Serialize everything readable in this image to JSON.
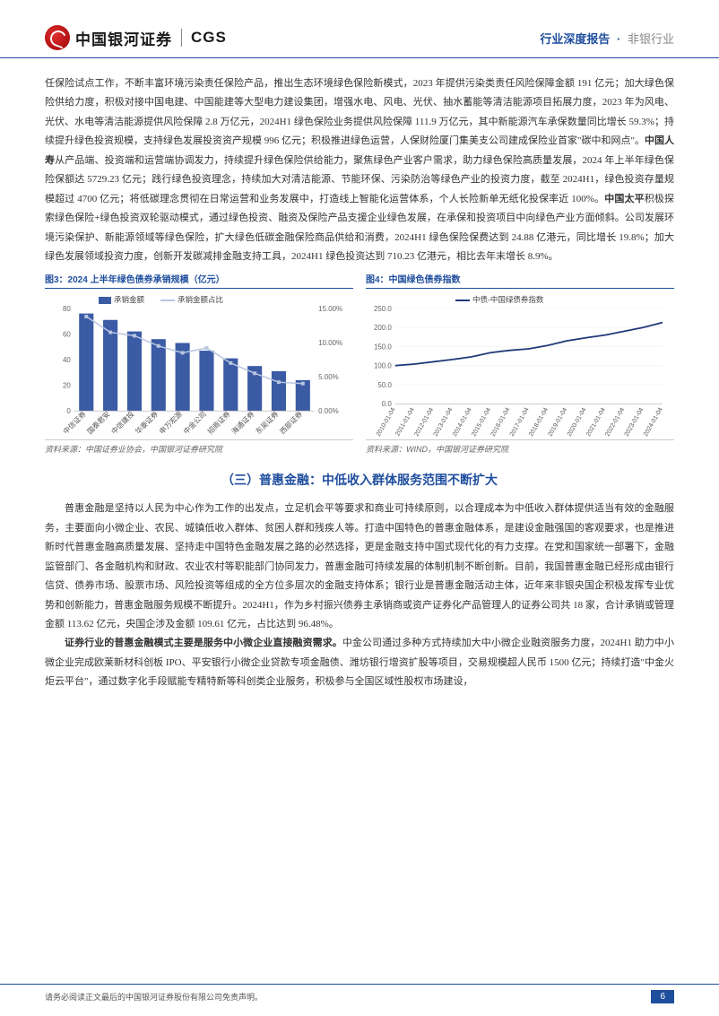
{
  "header": {
    "logo_cn": "中国银河证券",
    "logo_en": "CGS",
    "right_main": "行业深度报告",
    "right_sub": "非银行业"
  },
  "para_top": "任保险试点工作，不断丰富环境污染责任保险产品，推出生态环境绿色保险新模式，2023 年提供污染类责任风险保障金额 191 亿元；加大绿色保险供给力度，积极对接中国电建、中国能建等大型电力建设集团，增强水电、风电、光伏、抽水蓄能等清洁能源项目拓展力度，2023 年为风电、光伏、水电等清洁能源提供风险保障 2.8 万亿元，2024H1 绿色保险业务提供风险保障 111.9 万亿元，其中新能源汽车承保数量同比增长 59.3%；持续提升绿色投资规模，支持绿色发展投资资产规模 996 亿元；积极推进绿色运营，人保财险厦门集美支公司建成保险业首家\"碳中和网点\"。",
  "bold1": "中国人寿",
  "para_mid": "从产品端、投资端和运营端协调发力，持续提升绿色保险供给能力，聚焦绿色产业客户需求，助力绿色保险高质量发展，2024 年上半年绿色保险保额达 5729.23 亿元；践行绿色投资理念，持续加大对清洁能源、节能环保、污染防治等绿色产业的投资力度，截至 2024H1，绿色投资存量规模超过 4700 亿元；将低碳理念贯彻在日常运营和业务发展中，打造线上智能化运营体系，个人长险新单无纸化投保率近 100%。",
  "bold2": "中国太平",
  "para_end": "积极探索绿色保险+绿色投资双轮驱动模式，通过绿色投资、融资及保险产品支援企业绿色发展，在承保和投资项目中向绿色产业方面倾斜。公司发展环境污染保护、新能源领域等绿色保险，扩大绿色低碳金融保险商品供给和消费，2024H1 绿色保险保费达到 24.88 亿港元，同比增长 19.8%；加大绿色发展领域投资力度，创新开发碳减排金融支持工具，2024H1 绿色投资达到 710.23 亿港元，相比去年末增长 8.9%。",
  "chart3": {
    "title": "图3：2024 上半年绿色债券承销规模（亿元）",
    "type": "bar_line",
    "legend_bar": "承销金额",
    "legend_line": "承销金额占比",
    "categories": [
      "中信证券",
      "国泰君安",
      "中信建投",
      "华泰证券",
      "申万宏源",
      "中金公司",
      "招商证券",
      "海通证券",
      "东吴证券",
      "西部证券"
    ],
    "bar_values": [
      76,
      71,
      62,
      56,
      53,
      47,
      41,
      35,
      31,
      24
    ],
    "line_values": [
      13.8,
      11.5,
      11.0,
      9.5,
      8.5,
      9.2,
      7.0,
      5.5,
      4.2,
      4.0
    ],
    "y_left": {
      "min": 0,
      "max": 80,
      "step": 20
    },
    "y_right": {
      "min": 0,
      "max": 15,
      "step": 5,
      "suffix": "%"
    },
    "bar_color": "#3b5ba5",
    "line_color": "#b8c5e0",
    "bg": "#ffffff",
    "source": "资料来源：中国证券业协会，中国银河证券研究院"
  },
  "chart4": {
    "title": "图4：中国绿色债券指数",
    "type": "line",
    "legend": "中债-中国绿债券指数",
    "x_labels": [
      "2010-01-04",
      "2011-01-04",
      "2012-01-04",
      "2013-01-04",
      "2014-01-04",
      "2015-01-04",
      "2016-01-04",
      "2017-01-04",
      "2018-01-04",
      "2019-01-04",
      "2020-01-04",
      "2021-01-04",
      "2022-01-04",
      "2023-01-04",
      "2024-01-04"
    ],
    "values": [
      100,
      104,
      110,
      116,
      123,
      134,
      140,
      144,
      153,
      165,
      173,
      180,
      190,
      200,
      213
    ],
    "y": {
      "min": 0,
      "max": 250,
      "step": 50
    },
    "line_color": "#1f3a7a",
    "bg": "#ffffff",
    "source": "资料来源：WIND，中国银河证券研究院"
  },
  "section_heading": "（三）普惠金融：中低收入群体服务范围不断扩大",
  "para3": "普惠金融是坚持以人民为中心作为工作的出发点，立足机会平等要求和商业可持续原则，以合理成本为中低收入群体提供适当有效的金融服务，主要面向小微企业、农民、城镇低收入群体、贫困人群和残疾人等。打造中国特色的普惠金融体系，是建设金融强国的客观要求，也是推进新时代普惠金融高质量发展、坚持走中国特色金融发展之路的必然选择，更是金融支持中国式现代化的有力支撑。在党和国家统一部署下，金融监管部门、各金融机构和财政、农业农村等职能部门协同发力，普惠金融可持续发展的体制机制不断创新。目前，我国普惠金融已经形成由银行信贷、债券市场、股票市场、风险投资等组成的全方位多层次的金融支持体系；银行业是普惠金融活动主体，近年来非银央国企积极发挥专业优势和创新能力，普惠金融服务规模不断提升。2024H1，作为乡村振兴债券主承销商或资产证券化产品管理人的证券公司共 18 家，合计承销或管理金额 113.62 亿元，央国企涉及金额 109.61 亿元，占比达到 96.48%。",
  "bold3": "证券行业的普惠金融模式主要是服务中小微企业直接融资需求。",
  "para4": "中金公司通过多种方式持续加大中小微企业融资服务力度，2024H1 助力中小微企业完成欧莱新材科创板 IPO、平安银行小微企业贷款专项金融债、潍坊银行增资扩股等项目，交易规模超人民币 1500 亿元；持续打造\"中金火炬云平台\"，通过数字化手段赋能专精特新等科创类企业服务，积极参与全国区域性股权市场建设，",
  "footer": {
    "disclaimer": "请务必阅读正文最后的中国银河证券股份有限公司免责声明。",
    "page": "6"
  }
}
